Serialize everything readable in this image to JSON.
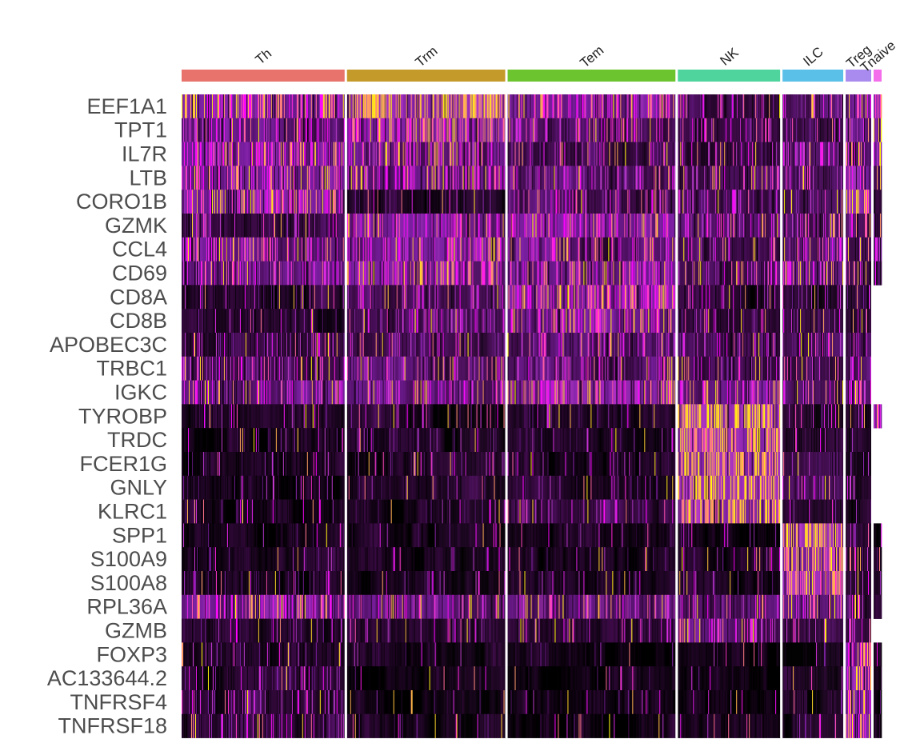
{
  "chart_data": {
    "type": "heatmap",
    "title": "",
    "xlabel": "",
    "ylabel": "",
    "clusters": [
      {
        "name": "Th",
        "cells": 204,
        "color": "#E8736C"
      },
      {
        "name": "Trm",
        "cells": 198,
        "color": "#C49A2B"
      },
      {
        "name": "Tem",
        "cells": 210,
        "color": "#6CC42F"
      },
      {
        "name": "NK",
        "cells": 128,
        "color": "#4FD49E"
      },
      {
        "name": "ILC",
        "cells": 76,
        "color": "#5AC0E8"
      },
      {
        "name": "Treg",
        "cells": 32,
        "color": "#A98BEF"
      },
      {
        "name": "Tnaive",
        "cells": 10,
        "color": "#F46EEB"
      }
    ],
    "genes": [
      "EEF1A1",
      "TPT1",
      "IL7R",
      "LTB",
      "CORO1B",
      "GZMK",
      "CCL4",
      "CD69",
      "CD8A",
      "CD8B",
      "APOBEC3C",
      "TRBC1",
      "IGKC",
      "TYROBP",
      "TRDC",
      "FCER1G",
      "GNLY",
      "KLRC1",
      "SPP1",
      "S100A9",
      "S100A8",
      "RPL36A",
      "GZMB",
      "FOXP3",
      "AC133644.2",
      "TNFRSF4",
      "TNFRSF18"
    ],
    "mean_expression": [
      [
        0.75,
        0.9,
        0.7,
        0.35,
        0.45,
        0.6,
        0.82
      ],
      [
        0.55,
        0.72,
        0.5,
        0.4,
        0.35,
        0.5,
        0.8
      ],
      [
        0.68,
        0.55,
        0.35,
        0.3,
        0.45,
        0.55,
        0.55
      ],
      [
        0.68,
        0.58,
        0.45,
        0.4,
        0.42,
        0.72,
        0.45
      ],
      [
        0.72,
        0.2,
        0.45,
        0.4,
        0.4,
        0.8,
        0.25
      ],
      [
        0.32,
        0.65,
        0.65,
        0.45,
        0.5,
        0.42,
        0.4
      ],
      [
        0.55,
        0.62,
        0.55,
        0.42,
        0.5,
        0.45,
        0.55
      ],
      [
        0.52,
        0.68,
        0.6,
        0.45,
        0.55,
        0.4,
        0.52
      ],
      [
        0.25,
        0.45,
        0.72,
        0.3,
        0.32,
        0.3,
        0.0
      ],
      [
        0.22,
        0.42,
        0.65,
        0.3,
        0.3,
        0.28,
        0.0
      ],
      [
        0.38,
        0.38,
        0.45,
        0.38,
        0.42,
        0.35,
        0.0
      ],
      [
        0.45,
        0.48,
        0.48,
        0.4,
        0.45,
        0.42,
        0.0
      ],
      [
        0.58,
        0.58,
        0.65,
        0.6,
        0.45,
        0.55,
        0.0
      ],
      [
        0.18,
        0.22,
        0.22,
        0.92,
        0.25,
        0.25,
        0.6
      ],
      [
        0.15,
        0.18,
        0.2,
        0.85,
        0.22,
        0.2,
        0.0
      ],
      [
        0.15,
        0.18,
        0.2,
        0.88,
        0.35,
        0.2,
        0.0
      ],
      [
        0.15,
        0.18,
        0.22,
        0.9,
        0.38,
        0.22,
        0.0
      ],
      [
        0.15,
        0.2,
        0.35,
        0.85,
        0.22,
        0.2,
        0.0
      ],
      [
        0.18,
        0.15,
        0.15,
        0.15,
        0.88,
        0.3,
        0.1
      ],
      [
        0.2,
        0.15,
        0.15,
        0.2,
        0.85,
        0.25,
        0.2
      ],
      [
        0.2,
        0.15,
        0.15,
        0.2,
        0.82,
        0.25,
        0.2
      ],
      [
        0.62,
        0.52,
        0.5,
        0.5,
        0.6,
        0.5,
        0.3
      ],
      [
        0.2,
        0.25,
        0.25,
        0.55,
        0.35,
        0.4,
        0.0
      ],
      [
        0.2,
        0.1,
        0.1,
        0.1,
        0.1,
        0.75,
        0.15
      ],
      [
        0.25,
        0.1,
        0.1,
        0.1,
        0.2,
        0.7,
        0.15
      ],
      [
        0.3,
        0.12,
        0.1,
        0.12,
        0.22,
        0.75,
        0.15
      ],
      [
        0.3,
        0.15,
        0.12,
        0.15,
        0.22,
        0.72,
        0.15
      ]
    ],
    "color_scale": [
      "#000000",
      "#3B0A45",
      "#7B1FA2",
      "#C53FD0",
      "#FF00FF",
      "#FFFF00"
    ],
    "legend": "none",
    "grid": false
  }
}
